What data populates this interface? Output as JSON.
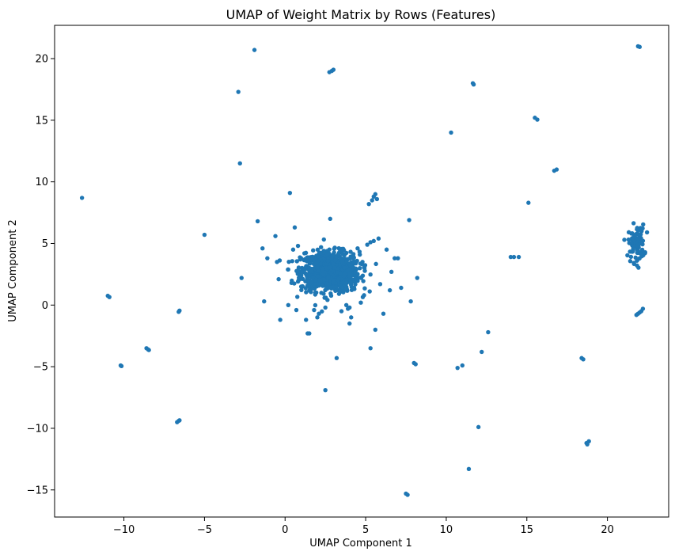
{
  "chart_data": {
    "type": "scatter",
    "title": "UMAP of Weight Matrix by Rows (Features)",
    "xlabel": "UMAP Component 1",
    "ylabel": "UMAP Component 2",
    "xlim": [
      -14.3,
      23.8
    ],
    "ylim": [
      -17.2,
      22.7
    ],
    "xticks": [
      -10,
      -5,
      0,
      5,
      10,
      15,
      20
    ],
    "xtick_labels": [
      "−10",
      "−5",
      "0",
      "5",
      "10",
      "15",
      "20"
    ],
    "yticks": [
      -15,
      -10,
      -5,
      0,
      5,
      10,
      15,
      20
    ],
    "ytick_labels": [
      "−15",
      "−10",
      "−5",
      "0",
      "5",
      "10",
      "15",
      "20"
    ],
    "grid": false,
    "marker_color": "#1f77b4",
    "main_cluster": {
      "center": [
        2.8,
        2.7
      ],
      "spread": [
        0.9,
        0.8
      ]
    },
    "points": [
      [
        -12.6,
        8.7
      ],
      [
        -11.0,
        0.75
      ],
      [
        -10.9,
        0.65
      ],
      [
        -10.2,
        -4.9
      ],
      [
        -10.15,
        -4.95
      ],
      [
        -8.6,
        -3.5
      ],
      [
        -8.5,
        -3.6
      ],
      [
        -8.45,
        -3.65
      ],
      [
        -6.7,
        -9.5
      ],
      [
        -6.6,
        -9.4
      ],
      [
        -6.55,
        -9.35
      ],
      [
        -6.6,
        -0.55
      ],
      [
        -6.55,
        -0.45
      ],
      [
        -5.0,
        5.7
      ],
      [
        -2.7,
        2.2
      ],
      [
        -2.8,
        11.5
      ],
      [
        -2.9,
        17.3
      ],
      [
        -1.9,
        20.7
      ],
      [
        -1.7,
        6.8
      ],
      [
        -1.4,
        4.6
      ],
      [
        -1.3,
        0.3
      ],
      [
        -1.1,
        3.8
      ],
      [
        -0.6,
        5.6
      ],
      [
        -0.5,
        3.5
      ],
      [
        -0.4,
        2.1
      ],
      [
        -0.3,
        -1.2
      ],
      [
        0.2,
        0.0
      ],
      [
        0.3,
        9.1
      ],
      [
        0.5,
        4.5
      ],
      [
        0.6,
        6.3
      ],
      [
        0.7,
        -0.4
      ],
      [
        0.8,
        4.8
      ],
      [
        1.2,
        4.2
      ],
      [
        1.3,
        -1.2
      ],
      [
        1.5,
        -2.3
      ],
      [
        1.6,
        3.7
      ],
      [
        1.8,
        -0.4
      ],
      [
        2.0,
        -1.0
      ],
      [
        2.1,
        -0.7
      ],
      [
        2.5,
        -0.2
      ],
      [
        1.4,
        -2.3
      ],
      [
        0.4,
        1.8
      ],
      [
        1.0,
        1.5
      ],
      [
        0.9,
        2.3
      ],
      [
        2.5,
        -6.9
      ],
      [
        2.8,
        7.0
      ],
      [
        2.75,
        18.9
      ],
      [
        2.9,
        19.0
      ],
      [
        3.0,
        19.1
      ],
      [
        3.2,
        -4.3
      ],
      [
        3.8,
        0.0
      ],
      [
        3.9,
        -0.3
      ],
      [
        3.5,
        -0.5
      ],
      [
        4.0,
        -0.2
      ],
      [
        4.1,
        -1.0
      ],
      [
        4.0,
        -1.5
      ],
      [
        4.3,
        1.3
      ],
      [
        4.5,
        4.6
      ],
      [
        4.7,
        0.2
      ],
      [
        4.9,
        0.8
      ],
      [
        5.1,
        4.9
      ],
      [
        5.2,
        8.2
      ],
      [
        5.4,
        8.5
      ],
      [
        5.5,
        8.8
      ],
      [
        5.6,
        9.0
      ],
      [
        5.7,
        8.6
      ],
      [
        5.3,
        5.1
      ],
      [
        5.5,
        5.2
      ],
      [
        5.8,
        5.4
      ],
      [
        5.6,
        -2.0
      ],
      [
        5.3,
        -3.5
      ],
      [
        5.9,
        1.7
      ],
      [
        6.1,
        -0.7
      ],
      [
        6.3,
        4.5
      ],
      [
        6.5,
        1.2
      ],
      [
        6.6,
        2.7
      ],
      [
        6.8,
        3.8
      ],
      [
        7.0,
        3.8
      ],
      [
        7.2,
        1.4
      ],
      [
        7.5,
        -15.3
      ],
      [
        7.6,
        -15.4
      ],
      [
        7.7,
        6.9
      ],
      [
        7.8,
        0.3
      ],
      [
        8.0,
        -4.7
      ],
      [
        8.1,
        -4.8
      ],
      [
        8.2,
        2.2
      ],
      [
        10.3,
        14.0
      ],
      [
        10.7,
        -5.1
      ],
      [
        11.0,
        -4.9
      ],
      [
        11.4,
        -13.3
      ],
      [
        11.7,
        17.9
      ],
      [
        11.65,
        18.0
      ],
      [
        12.0,
        -9.9
      ],
      [
        12.2,
        -3.8
      ],
      [
        12.6,
        -2.2
      ],
      [
        14.0,
        3.9
      ],
      [
        14.2,
        3.9
      ],
      [
        14.5,
        3.9
      ],
      [
        15.1,
        8.3
      ],
      [
        15.5,
        15.2
      ],
      [
        15.65,
        15.05
      ],
      [
        16.7,
        10.9
      ],
      [
        16.85,
        11.0
      ],
      [
        18.4,
        -4.3
      ],
      [
        18.5,
        -4.4
      ],
      [
        18.7,
        -11.2
      ],
      [
        18.75,
        -11.3
      ],
      [
        18.85,
        -11.05
      ],
      [
        21.9,
        21.0
      ],
      [
        22.0,
        20.95
      ],
      [
        21.8,
        -0.8
      ],
      [
        21.9,
        -0.7
      ],
      [
        22.0,
        -0.6
      ],
      [
        22.1,
        -0.5
      ],
      [
        22.2,
        -0.3
      ]
    ],
    "right_cluster": {
      "center": [
        21.8,
        5.0
      ],
      "spread": [
        0.25,
        0.75
      ]
    }
  }
}
